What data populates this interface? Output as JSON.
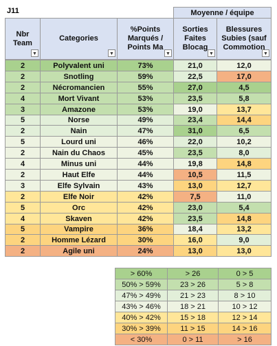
{
  "sheet": {
    "cell_ref": "J11",
    "group_header": "Moyenne / équipe",
    "headers": [
      [
        "Nbr",
        "Team"
      ],
      [
        "Categories"
      ],
      [
        "%Points",
        "Marqués /",
        "Points Ma"
      ],
      [
        "Sorties",
        "Faites",
        "Blocag"
      ],
      [
        "Blessures",
        "Subies (sauf",
        "Commotion"
      ]
    ],
    "header_color": "#d9e1f2",
    "rows": [
      {
        "cells": [
          "2",
          "Polyvalent uni",
          "73%",
          "21,0",
          "12,0"
        ],
        "colors": [
          "#a9d18e",
          "#e2efd9",
          "#eef3e2"
        ]
      },
      {
        "cells": [
          "2",
          "Snotling",
          "59%",
          "22,5",
          "17,0"
        ],
        "colors": [
          "#c3dfae",
          "#e2efd9",
          "#f4b183"
        ]
      },
      {
        "cells": [
          "2",
          "Nécromancien",
          "55%",
          "27,0",
          "4,5"
        ],
        "colors": [
          "#c3dfae",
          "#a9d18e",
          "#a9d18e"
        ]
      },
      {
        "cells": [
          "4",
          "Mort Vivant",
          "53%",
          "23,5",
          "5,8"
        ],
        "colors": [
          "#c3dfae",
          "#c3dfae",
          "#c3dfae"
        ]
      },
      {
        "cells": [
          "3",
          "Amazone",
          "53%",
          "19,0",
          "13,7"
        ],
        "colors": [
          "#c3dfae",
          "#eef3e2",
          "#ffe699"
        ]
      },
      {
        "cells": [
          "5",
          "Norse",
          "49%",
          "23,4",
          "14,4"
        ],
        "colors": [
          "#e2efd9",
          "#c3dfae",
          "#fdd47f"
        ]
      },
      {
        "cells": [
          "2",
          "Nain",
          "47%",
          "31,0",
          "6,5"
        ],
        "colors": [
          "#e2efd9",
          "#a9d18e",
          "#c3dfae"
        ]
      },
      {
        "cells": [
          "5",
          "Lourd uni",
          "46%",
          "22,0",
          "10,2"
        ],
        "colors": [
          "#eef3e2",
          "#e2efd9",
          "#eef3e2"
        ]
      },
      {
        "cells": [
          "2",
          "Nain du Chaos",
          "45%",
          "23,5",
          "8,0"
        ],
        "colors": [
          "#eef3e2",
          "#c3dfae",
          "#e2efd9"
        ]
      },
      {
        "cells": [
          "4",
          "Minus uni",
          "44%",
          "19,8",
          "14,8"
        ],
        "colors": [
          "#eef3e2",
          "#eef3e2",
          "#fdd47f"
        ]
      },
      {
        "cells": [
          "2",
          "Haut Elfe",
          "44%",
          "10,5",
          "11,5"
        ],
        "colors": [
          "#eef3e2",
          "#f4b183",
          "#eef3e2"
        ]
      },
      {
        "cells": [
          "3",
          "Elfe Sylvain",
          "43%",
          "13,0",
          "12,7"
        ],
        "colors": [
          "#eef3e2",
          "#fdd47f",
          "#ffe699"
        ]
      },
      {
        "cells": [
          "2",
          "Elfe Noir",
          "42%",
          "7,5",
          "11,0"
        ],
        "colors": [
          "#ffe699",
          "#f4b183",
          "#eef3e2"
        ]
      },
      {
        "cells": [
          "5",
          "Orc",
          "42%",
          "23,0",
          "5,4"
        ],
        "colors": [
          "#ffe699",
          "#c3dfae",
          "#c3dfae"
        ]
      },
      {
        "cells": [
          "4",
          "Skaven",
          "42%",
          "23,5",
          "14,8"
        ],
        "colors": [
          "#ffe699",
          "#c3dfae",
          "#fdd47f"
        ]
      },
      {
        "cells": [
          "5",
          "Vampire",
          "36%",
          "18,4",
          "13,2"
        ],
        "colors": [
          "#fdd47f",
          "#eef3e2",
          "#ffe699"
        ]
      },
      {
        "cells": [
          "2",
          "Homme Lézard",
          "30%",
          "16,0",
          "9,0"
        ],
        "colors": [
          "#fdd47f",
          "#ffe699",
          "#e2efd9"
        ]
      },
      {
        "cells": [
          "2",
          "Agile uni",
          "24%",
          "13,0",
          "13,0"
        ],
        "colors": [
          "#f4b183",
          "#fdd47f",
          "#ffe699"
        ]
      }
    ],
    "legend": [
      {
        "cells": [
          "> 60%",
          "> 26",
          "0 > 5"
        ],
        "color": "#a9d18e"
      },
      {
        "cells": [
          "50% > 59%",
          "23 > 26",
          "5 > 8"
        ],
        "color": "#c3dfae"
      },
      {
        "cells": [
          "47% > 49%",
          "21 > 23",
          "8 > 10"
        ],
        "color": "#e2efd9"
      },
      {
        "cells": [
          "43% > 46%",
          "18 > 21",
          "10 > 12"
        ],
        "color": "#eef3e2"
      },
      {
        "cells": [
          "40% > 42%",
          "15 > 18",
          "12 > 14"
        ],
        "color": "#ffe699"
      },
      {
        "cells": [
          "30% > 39%",
          "11 > 15",
          "14 > 16"
        ],
        "color": "#fdd47f"
      },
      {
        "cells": [
          "< 30%",
          "0 > 11",
          "> 16"
        ],
        "color": "#f4b183"
      }
    ]
  }
}
